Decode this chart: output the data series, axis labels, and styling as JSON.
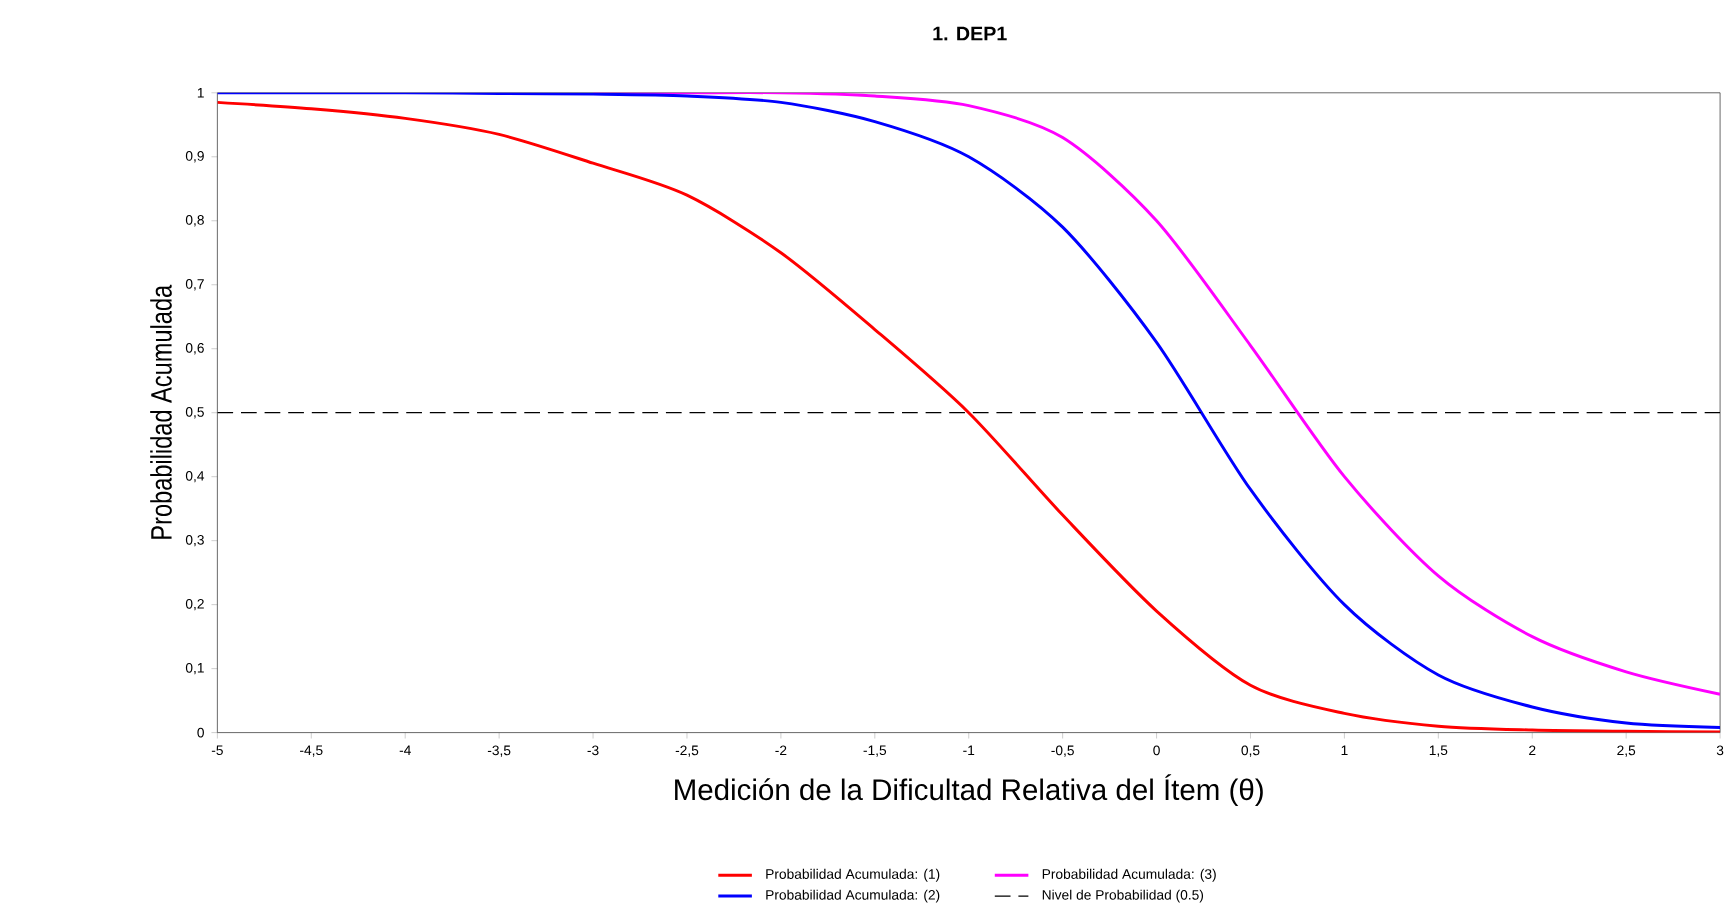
{
  "chart_data": {
    "type": "line",
    "title": "1. DEP1",
    "xlabel": "Medición de la Dificultad Relativa del Ítem (θ)",
    "ylabel": "Probabilidad Acumulada",
    "x": [
      -5,
      -4.5,
      -4,
      -3.5,
      -3,
      -2.5,
      -2,
      -1.5,
      -1,
      -0.5,
      0,
      0.5,
      1,
      1.5,
      2,
      2.5,
      3
    ],
    "series": [
      {
        "name": "Probabilidad Acumulada: (1)",
        "color": "#ff0000",
        "values": [
          0.985,
          0.975,
          0.96,
          0.935,
          0.89,
          0.84,
          0.75,
          0.63,
          0.5,
          0.34,
          0.19,
          0.074,
          0.03,
          0.01,
          0.004,
          0.002,
          0.001
        ]
      },
      {
        "name": "Probabilidad Acumulada: (2)",
        "color": "#0000ff",
        "values": [
          1,
          1,
          1,
          0.999,
          0.998,
          0.995,
          0.985,
          0.955,
          0.9,
          0.79,
          0.61,
          0.38,
          0.2,
          0.09,
          0.04,
          0.015,
          0.008
        ]
      },
      {
        "name": "Probabilidad Acumulada: (3)",
        "color": "#ff00ff",
        "values": [
          null,
          null,
          null,
          null,
          1,
          1,
          1,
          0.995,
          0.98,
          0.93,
          0.8,
          0.605,
          0.4,
          0.245,
          0.15,
          0.095,
          0.06
        ]
      }
    ],
    "ref_lines": [
      {
        "axis": "y",
        "value": 0.5,
        "label": "Nivel de Probabilidad (0.5)",
        "color": "#000000",
        "line_style": "dashed"
      }
    ],
    "xlim": [
      -5,
      3
    ],
    "xticks": [
      -5,
      {
        "value": -4.5,
        "label": "-4,5"
      },
      -4,
      {
        "value": -3.5,
        "label": "-3,5"
      },
      -3,
      {
        "value": -2.5,
        "label": "-2,5"
      },
      -2,
      {
        "value": -1.5,
        "label": "-1,5"
      },
      -1,
      {
        "value": -0.5,
        "label": "-0,5"
      },
      0,
      {
        "value": 0.5,
        "label": "0,5"
      },
      1,
      {
        "value": 1.5,
        "label": "1,5"
      },
      2,
      {
        "value": 2.5,
        "label": "2,5"
      },
      3
    ],
    "ylim": [
      0,
      1
    ],
    "yticks": [
      0,
      {
        "value": 0.1,
        "label": "0,1"
      },
      {
        "value": 0.2,
        "label": "0,2"
      },
      {
        "value": 0.3,
        "label": "0,3"
      },
      {
        "value": 0.4,
        "label": "0,4"
      },
      {
        "value": 0.5,
        "label": "0,5"
      },
      {
        "value": 0.6,
        "label": "0,6"
      },
      {
        "value": 0.7,
        "label": "0,7"
      },
      {
        "value": 0.8,
        "label": "0,8"
      },
      {
        "value": 0.9,
        "label": "0,9"
      },
      1
    ],
    "grid": false,
    "legend": "bottom",
    "marker": "none",
    "line_style": "solid"
  }
}
